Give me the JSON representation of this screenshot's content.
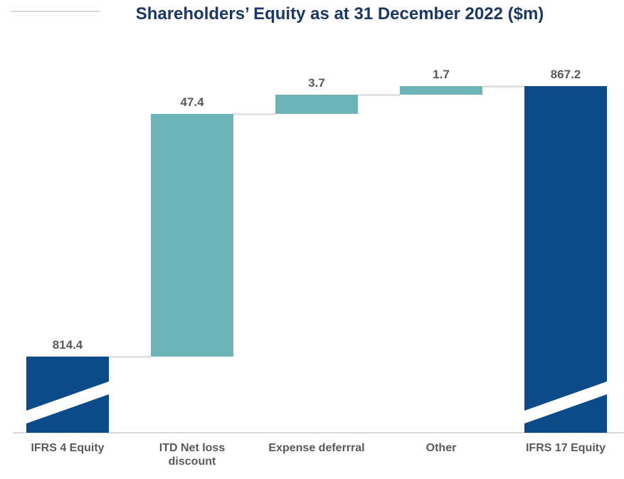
{
  "chart_data": {
    "type": "waterfall",
    "title": "Shareholders’ Equity as at 31 December 2022 ($m)",
    "categories": [
      "IFRS 4 Equity",
      "ITD Net loss discount",
      "Expense deferrral",
      "Other",
      "IFRS 17 Equity"
    ],
    "bars": [
      {
        "label": "IFRS 4 Equity",
        "label_lines": [
          "IFRS 4 Equity"
        ],
        "value": 814.4,
        "value_label": "814.4",
        "role": "total",
        "axis_break": true
      },
      {
        "label": "ITD Net loss discount",
        "label_lines": [
          "ITD Net loss",
          "discount"
        ],
        "value": 47.4,
        "value_label": "47.4",
        "role": "increase",
        "axis_break": false
      },
      {
        "label": "Expense deferrral",
        "label_lines": [
          "Expense deferrral"
        ],
        "value": 3.7,
        "value_label": "3.7",
        "role": "increase",
        "axis_break": false
      },
      {
        "label": "Other",
        "label_lines": [
          "Other"
        ],
        "value": 1.7,
        "value_label": "1.7",
        "role": "increase",
        "axis_break": false
      },
      {
        "label": "IFRS 17 Equity",
        "label_lines": [
          "IFRS 17 Equity"
        ],
        "value": 867.2,
        "value_label": "867.2",
        "role": "total",
        "axis_break": true
      }
    ],
    "colors": {
      "total": "#0c4a8a",
      "increase": "#6db4b8",
      "title": "#1b3764",
      "label": "#595959",
      "connector": "#e2e2e2",
      "axis_line": "#d9d9d9"
    },
    "baseline": 0,
    "grid": false,
    "legend": false,
    "axis_break_note": "broken vertical axis indicated by white diagonal slashes on the two total bars"
  }
}
